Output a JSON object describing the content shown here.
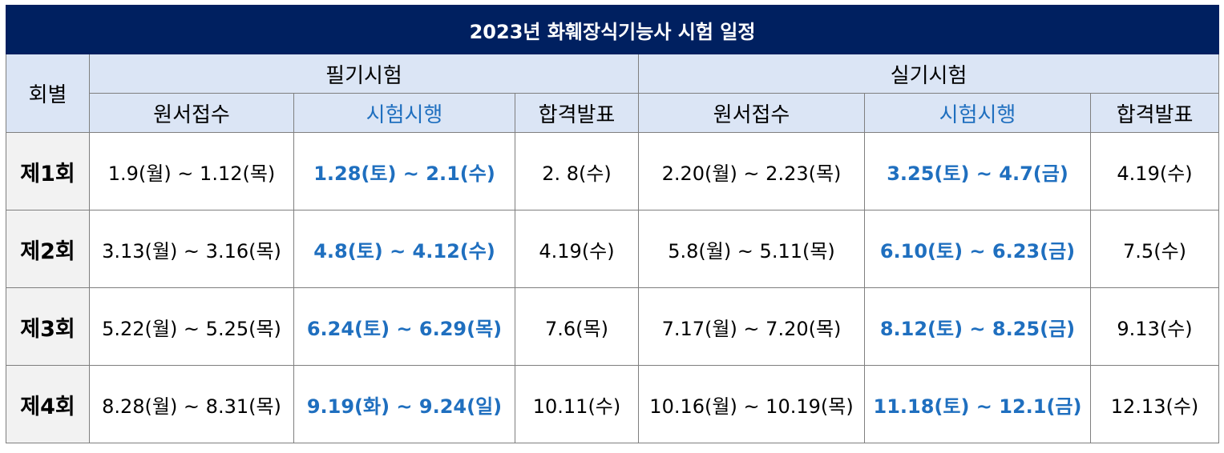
{
  "title": "2023년 화훼장식기능사 시험 일정",
  "headers": {
    "round": "회별",
    "written": "필기시험",
    "practical": "실기시험",
    "apply": "원서접수",
    "exam": "시험시행",
    "result": "합격발표"
  },
  "colors": {
    "title_bg": "#002060",
    "header_bg": "#dbe5f5",
    "accent": "#1f6fbf",
    "round_bg": "#f2f2f2"
  },
  "rows": [
    {
      "round": "제1회",
      "w_apply": "1.9(월) ~ 1.12(목)",
      "w_exam": "1.28(토) ~ 2.1(수)",
      "w_result": "2. 8(수)",
      "p_apply": "2.20(월) ~ 2.23(목)",
      "p_exam": "3.25(토) ~ 4.7(금)",
      "p_result": "4.19(수)"
    },
    {
      "round": "제2회",
      "w_apply": "3.13(월) ~ 3.16(목)",
      "w_exam": "4.8(토) ~ 4.12(수)",
      "w_result": "4.19(수)",
      "p_apply": "5.8(월) ~ 5.11(목)",
      "p_exam": "6.10(토) ~ 6.23(금)",
      "p_result": "7.5(수)"
    },
    {
      "round": "제3회",
      "w_apply": "5.22(월) ~ 5.25(목)",
      "w_exam": "6.24(토) ~ 6.29(목)",
      "w_result": "7.6(목)",
      "p_apply": "7.17(월) ~ 7.20(목)",
      "p_exam": "8.12(토) ~ 8.25(금)",
      "p_result": "9.13(수)"
    },
    {
      "round": "제4회",
      "w_apply": "8.28(월) ~ 8.31(목)",
      "w_exam": "9.19(화) ~ 9.24(일)",
      "w_result": "10.11(수)",
      "p_apply": "10.16(월) ~ 10.19(목)",
      "p_exam": "11.18(토) ~ 12.1(금)",
      "p_result": "12.13(수)"
    }
  ]
}
